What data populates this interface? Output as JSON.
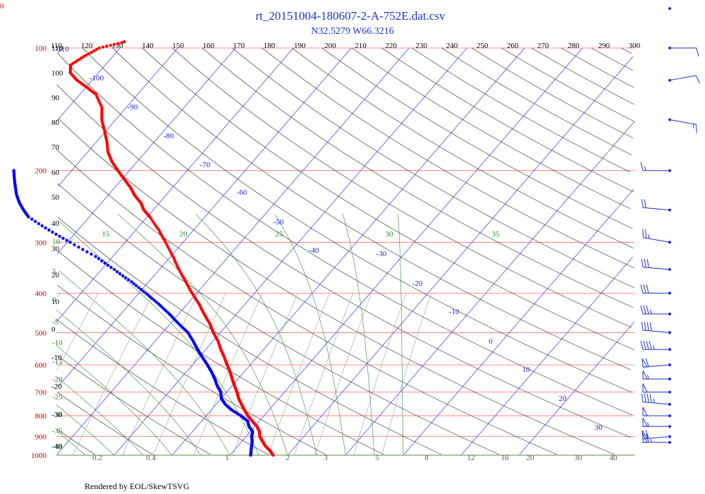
{
  "header": {
    "title": "rt_20151004-180607-2-A-752E.dat.csv",
    "subtitle": "N32.5279 W66.3216",
    "corner_mark": "0",
    "credit": "Rendered by EOL/SkewTSVG"
  },
  "chart_data": {
    "type": "skew-t",
    "pressure_axis": {
      "scale": "log",
      "range_hpa": [
        1000,
        100
      ],
      "labels": [
        "100",
        "200",
        "300",
        "400",
        "500",
        "600",
        "700",
        "800",
        "900",
        "1000"
      ],
      "color": "#c00000"
    },
    "top_scale": {
      "labels": [
        "110",
        "120",
        "130",
        "140",
        "150",
        "160",
        "170",
        "180",
        "190",
        "200",
        "210",
        "220",
        "230",
        "240",
        "250",
        "260",
        "270",
        "280",
        "290",
        "300"
      ]
    },
    "isotherm_labels": [
      "-110",
      "-100",
      "-90",
      "-80",
      "-70",
      "-60",
      "-50",
      "-40",
      "-30",
      "-20",
      "-10",
      "0",
      "10",
      "20",
      "30"
    ],
    "dry_adiabat_labels": [
      "110",
      "100",
      "90",
      "80",
      "70",
      "60",
      "50",
      "40",
      "30",
      "20",
      "10",
      "0",
      "-10",
      "-20",
      "-30",
      "-40"
    ],
    "moist_adiabat_labels_top": [
      "15",
      "20",
      "25",
      "30",
      "35"
    ],
    "moist_adiabat_labels_left": [
      "10",
      "5",
      "0",
      "-5",
      "-10",
      "-15",
      "-20",
      "-25",
      "-30",
      "-35",
      "-40"
    ],
    "mixing_ratio_labels": [
      "0.2",
      "0.4",
      "1",
      "2",
      "3",
      "5",
      "8",
      "12",
      "16",
      "20",
      "30",
      "40"
    ],
    "series": [
      {
        "color": "#ff0000",
        "points": [
          [
            1000,
            17.5
          ],
          [
            975,
            16.3
          ],
          [
            950,
            14.8
          ],
          [
            925,
            13.6
          ],
          [
            900,
            12.4
          ],
          [
            875,
            11.6
          ],
          [
            850,
            10.4
          ],
          [
            825,
            8.8
          ],
          [
            800,
            7.2
          ],
          [
            775,
            5.8
          ],
          [
            750,
            4.4
          ],
          [
            725,
            3.0
          ],
          [
            700,
            1.8
          ],
          [
            675,
            0.4
          ],
          [
            650,
            -1.0
          ],
          [
            625,
            -2.4
          ],
          [
            600,
            -4.0
          ],
          [
            575,
            -5.6
          ],
          [
            550,
            -7.4
          ],
          [
            525,
            -9.1
          ],
          [
            500,
            -11.2
          ],
          [
            475,
            -13.2
          ],
          [
            450,
            -15.6
          ],
          [
            425,
            -18.0
          ],
          [
            400,
            -20.8
          ],
          [
            375,
            -23.6
          ],
          [
            350,
            -26.6
          ],
          [
            325,
            -29.6
          ],
          [
            300,
            -33.0
          ],
          [
            280,
            -36.0
          ],
          [
            260,
            -39.5
          ],
          [
            250,
            -41.6
          ],
          [
            240,
            -43.2
          ],
          [
            230,
            -45.4
          ],
          [
            220,
            -47.3
          ],
          [
            210,
            -49.6
          ],
          [
            200,
            -52.0
          ],
          [
            190,
            -54.4
          ],
          [
            180,
            -56.5
          ],
          [
            170,
            -58.2
          ],
          [
            160,
            -60.2
          ],
          [
            150,
            -62.4
          ],
          [
            140,
            -64.2
          ],
          [
            130,
            -67.2
          ],
          [
            125,
            -69.8
          ],
          [
            120,
            -72.6
          ],
          [
            115,
            -74.9
          ],
          [
            110,
            -76.0
          ],
          [
            105,
            -75.0
          ],
          [
            100,
            -73.6
          ],
          [
            97,
            -70.5
          ],
          [
            94,
            -68.6
          ],
          [
            90,
            -67.6
          ],
          [
            86,
            -66.2
          ],
          [
            82,
            -64.6
          ],
          [
            78,
            -62.9
          ],
          [
            75,
            -61.0
          ],
          [
            72,
            -58.5
          ],
          [
            69,
            -56.8
          ],
          [
            67,
            -55.0
          ],
          [
            65,
            -52.5
          ],
          [
            64,
            -50.8
          ]
        ]
      },
      {
        "color": "#0000ff",
        "points": [
          [
            1000,
            13.6
          ],
          [
            975,
            13.0
          ],
          [
            950,
            12.4
          ],
          [
            925,
            11.8
          ],
          [
            900,
            11.0
          ],
          [
            875,
            10.4
          ],
          [
            850,
            9.0
          ],
          [
            825,
            8.0
          ],
          [
            800,
            6.0
          ],
          [
            775,
            3.6
          ],
          [
            750,
            1.6
          ],
          [
            725,
            0.0
          ],
          [
            700,
            -1.0
          ],
          [
            675,
            -2.6
          ],
          [
            650,
            -4.0
          ],
          [
            625,
            -5.6
          ],
          [
            600,
            -7.4
          ],
          [
            575,
            -9.4
          ],
          [
            550,
            -11.4
          ],
          [
            525,
            -13.4
          ],
          [
            500,
            -15.6
          ],
          [
            475,
            -18.6
          ],
          [
            450,
            -21.6
          ],
          [
            425,
            -25.0
          ],
          [
            400,
            -28.8
          ],
          [
            375,
            -33.0
          ],
          [
            350,
            -37.8
          ],
          [
            325,
            -43.0
          ],
          [
            300,
            -49.5
          ],
          [
            280,
            -55.0
          ],
          [
            260,
            -60.5
          ],
          [
            250,
            -62.4
          ],
          [
            240,
            -64.2
          ],
          [
            230,
            -65.8
          ],
          [
            220,
            -67.2
          ],
          [
            210,
            -68.6
          ],
          [
            200,
            -70.0
          ]
        ]
      }
    ],
    "wind_barbs": [
      {
        "p": 930,
        "dir": 270,
        "spd": 65
      },
      {
        "p": 900,
        "dir": 265,
        "spd": 60
      },
      {
        "p": 850,
        "dir": 270,
        "spd": 55
      },
      {
        "p": 800,
        "dir": 270,
        "spd": 50
      },
      {
        "p": 750,
        "dir": 275,
        "spd": 45
      },
      {
        "p": 700,
        "dir": 270,
        "spd": 50
      },
      {
        "p": 650,
        "dir": 270,
        "spd": 55
      },
      {
        "p": 600,
        "dir": 265,
        "spd": 60
      },
      {
        "p": 550,
        "dir": 270,
        "spd": 45
      },
      {
        "p": 500,
        "dir": 275,
        "spd": 40
      },
      {
        "p": 450,
        "dir": 270,
        "spd": 35
      },
      {
        "p": 400,
        "dir": 270,
        "spd": 30
      },
      {
        "p": 350,
        "dir": 275,
        "spd": 30
      },
      {
        "p": 300,
        "dir": 280,
        "spd": 25
      },
      {
        "p": 250,
        "dir": 275,
        "spd": 20
      },
      {
        "p": 200,
        "dir": 270,
        "spd": 15
      },
      {
        "p": 150,
        "dir": 100,
        "spd": 15
      },
      {
        "p": 120,
        "dir": 80,
        "spd": 10
      },
      {
        "p": 100,
        "dir": 90,
        "spd": 10
      },
      {
        "p": 80,
        "dir": 0,
        "spd": 0
      }
    ]
  }
}
